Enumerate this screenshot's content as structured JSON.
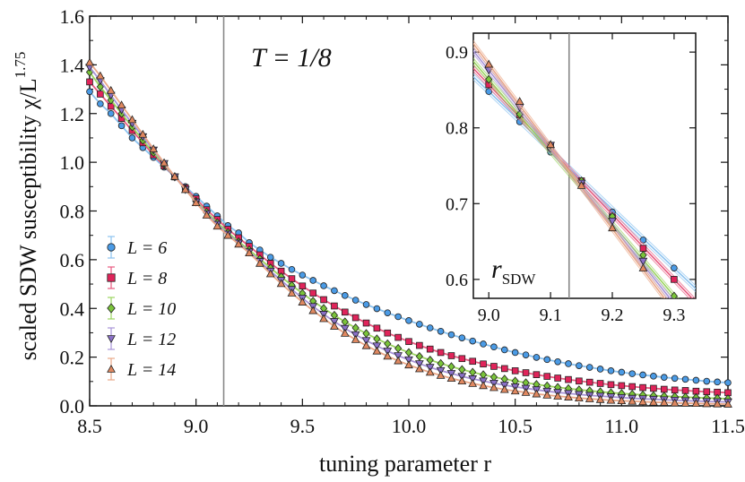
{
  "chart_data": [
    {
      "type": "line",
      "title": "",
      "xlabel": "tuning parameter  r",
      "ylabel": "scaled SDW susceptibility  χ/L^1.75",
      "ylabel_parts": {
        "main": "scaled SDW susceptibility  χ/L",
        "exponent": "1.75"
      },
      "xlim": [
        8.5,
        11.5
      ],
      "ylim": [
        0.0,
        1.6
      ],
      "x_ticks": [
        "8.5",
        "9.0",
        "9.5",
        "10.0",
        "10.5",
        "11.0",
        "11.5"
      ],
      "y_ticks": [
        "0.0",
        "0.2",
        "0.4",
        "0.6",
        "0.8",
        "1.0",
        "1.2",
        "1.4",
        "1.6"
      ],
      "grid": false,
      "legend_placement": "bottom-left",
      "annotation": {
        "text": "T = 1/8"
      },
      "vertical_line_x": 9.13,
      "x_step": 0.05,
      "series": [
        {
          "name": "L = 6",
          "label": "L = 6",
          "marker": "circle",
          "color": "#4a9be6",
          "line_color": "#8cc3f0",
          "values": [
            1.29,
            1.24,
            1.2,
            1.15,
            1.1,
            1.06,
            1.02,
            0.98,
            0.94,
            0.9,
            0.86,
            0.82,
            0.78,
            0.74,
            0.71,
            0.67,
            0.64,
            0.61,
            0.585,
            0.56,
            0.537,
            0.515,
            0.493,
            0.473,
            0.453,
            0.434,
            0.416,
            0.399,
            0.382,
            0.366,
            0.35,
            0.335,
            0.32,
            0.306,
            0.292,
            0.279,
            0.266,
            0.254,
            0.242,
            0.23,
            0.219,
            0.209,
            0.199,
            0.19,
            0.181,
            0.173,
            0.165,
            0.158,
            0.151,
            0.144,
            0.138,
            0.132,
            0.127,
            0.122,
            0.117,
            0.113,
            0.109,
            0.105,
            0.101,
            0.098,
            0.095,
            0.092
          ]
        },
        {
          "name": "L = 8",
          "label": "L = 8",
          "marker": "square",
          "color": "#e0245a",
          "line_color": "#e85a80",
          "values": [
            1.33,
            1.28,
            1.23,
            1.18,
            1.13,
            1.08,
            1.03,
            0.985,
            0.94,
            0.895,
            0.85,
            0.805,
            0.765,
            0.725,
            0.69,
            0.655,
            0.62,
            0.585,
            0.553,
            0.522,
            0.492,
            0.463,
            0.436,
            0.41,
            0.385,
            0.362,
            0.34,
            0.319,
            0.299,
            0.281,
            0.264,
            0.248,
            0.233,
            0.219,
            0.206,
            0.194,
            0.183,
            0.172,
            0.162,
            0.153,
            0.144,
            0.136,
            0.128,
            0.121,
            0.114,
            0.108,
            0.102,
            0.097,
            0.092,
            0.087,
            0.083,
            0.079,
            0.075,
            0.072,
            0.068,
            0.065,
            0.063,
            0.06,
            0.058,
            0.056,
            0.054,
            0.052
          ]
        },
        {
          "name": "L = 10",
          "label": "L = 10",
          "marker": "diamond",
          "color": "#7ac43a",
          "line_color": "#9bd460",
          "values": [
            1.37,
            1.31,
            1.255,
            1.2,
            1.145,
            1.09,
            1.04,
            0.99,
            0.94,
            0.89,
            0.84,
            0.795,
            0.752,
            0.712,
            0.674,
            0.64,
            0.603,
            0.566,
            0.53,
            0.495,
            0.462,
            0.43,
            0.4,
            0.372,
            0.345,
            0.32,
            0.297,
            0.275,
            0.255,
            0.236,
            0.219,
            0.203,
            0.188,
            0.174,
            0.161,
            0.149,
            0.138,
            0.128,
            0.118,
            0.11,
            0.102,
            0.095,
            0.088,
            0.082,
            0.076,
            0.071,
            0.066,
            0.062,
            0.058,
            0.054,
            0.051,
            0.048,
            0.045,
            0.042,
            0.04,
            0.038,
            0.036,
            0.034,
            0.032,
            0.031,
            0.029,
            0.028
          ]
        },
        {
          "name": "L = 12",
          "label": "L = 12",
          "marker": "triangle-down",
          "color": "#8a70c8",
          "line_color": "#a894d8",
          "values": [
            1.39,
            1.335,
            1.275,
            1.215,
            1.16,
            1.105,
            1.05,
            0.995,
            0.94,
            0.888,
            0.837,
            0.788,
            0.745,
            0.705,
            0.668,
            0.632,
            0.593,
            0.553,
            0.515,
            0.478,
            0.442,
            0.408,
            0.376,
            0.346,
            0.318,
            0.292,
            0.268,
            0.246,
            0.225,
            0.206,
            0.189,
            0.173,
            0.158,
            0.145,
            0.133,
            0.121,
            0.111,
            0.102,
            0.093,
            0.085,
            0.078,
            0.072,
            0.066,
            0.06,
            0.055,
            0.051,
            0.047,
            0.043,
            0.04,
            0.037,
            0.034,
            0.031,
            0.029,
            0.027,
            0.025,
            0.023,
            0.021,
            0.02,
            0.018,
            0.017,
            0.016,
            0.015
          ]
        },
        {
          "name": "L = 14",
          "label": "L = 14",
          "marker": "triangle-up",
          "color": "#e08860",
          "line_color": "#eaa888",
          "values": [
            1.41,
            1.355,
            1.295,
            1.235,
            1.175,
            1.115,
            1.055,
            0.998,
            0.942,
            0.888,
            0.834,
            0.783,
            0.738,
            0.7,
            0.664,
            0.628,
            0.585,
            0.542,
            0.502,
            0.463,
            0.426,
            0.391,
            0.358,
            0.327,
            0.298,
            0.272,
            0.247,
            0.225,
            0.204,
            0.185,
            0.168,
            0.152,
            0.138,
            0.125,
            0.113,
            0.102,
            0.092,
            0.083,
            0.075,
            0.067,
            0.061,
            0.055,
            0.049,
            0.044,
            0.04,
            0.036,
            0.032,
            0.029,
            0.026,
            0.023,
            0.021,
            0.019,
            0.017,
            0.015,
            0.014,
            0.012,
            0.011,
            0.01,
            0.009,
            0.008,
            0.007,
            0.007
          ]
        }
      ]
    },
    {
      "type": "line",
      "title": "",
      "xlabel": "",
      "ylabel": "",
      "xlim": [
        8.975,
        9.335
      ],
      "ylim": [
        0.575,
        0.925
      ],
      "x_ticks": [
        "9.0",
        "9.1",
        "9.2",
        "9.3"
      ],
      "y_ticks": [
        "0.6",
        "0.7",
        "0.8",
        "0.9"
      ],
      "grid": false,
      "annotation": {
        "main": "r",
        "sub": "SDW"
      },
      "vertical_line_x": 9.13,
      "x": [
        9.0,
        9.05,
        9.1,
        9.15,
        9.2,
        9.25,
        9.3
      ],
      "series": [
        {
          "name": "L = 6",
          "values": [
            0.848,
            0.808,
            0.768,
            0.73,
            0.689,
            0.652,
            0.615
          ]
        },
        {
          "name": "L = 8",
          "values": [
            0.857,
            0.817,
            0.775,
            0.73,
            0.682,
            0.641,
            0.6
          ]
        },
        {
          "name": "L = 10",
          "values": [
            0.864,
            0.818,
            0.773,
            0.73,
            0.683,
            0.632,
            0.578
          ]
        },
        {
          "name": "L = 12",
          "values": [
            0.876,
            0.827,
            0.777,
            0.727,
            0.677,
            0.624,
            0.568
          ]
        },
        {
          "name": "L = 14",
          "values": [
            0.884,
            0.835,
            0.778,
            0.724,
            0.668,
            0.615,
            0.558
          ]
        }
      ]
    }
  ]
}
